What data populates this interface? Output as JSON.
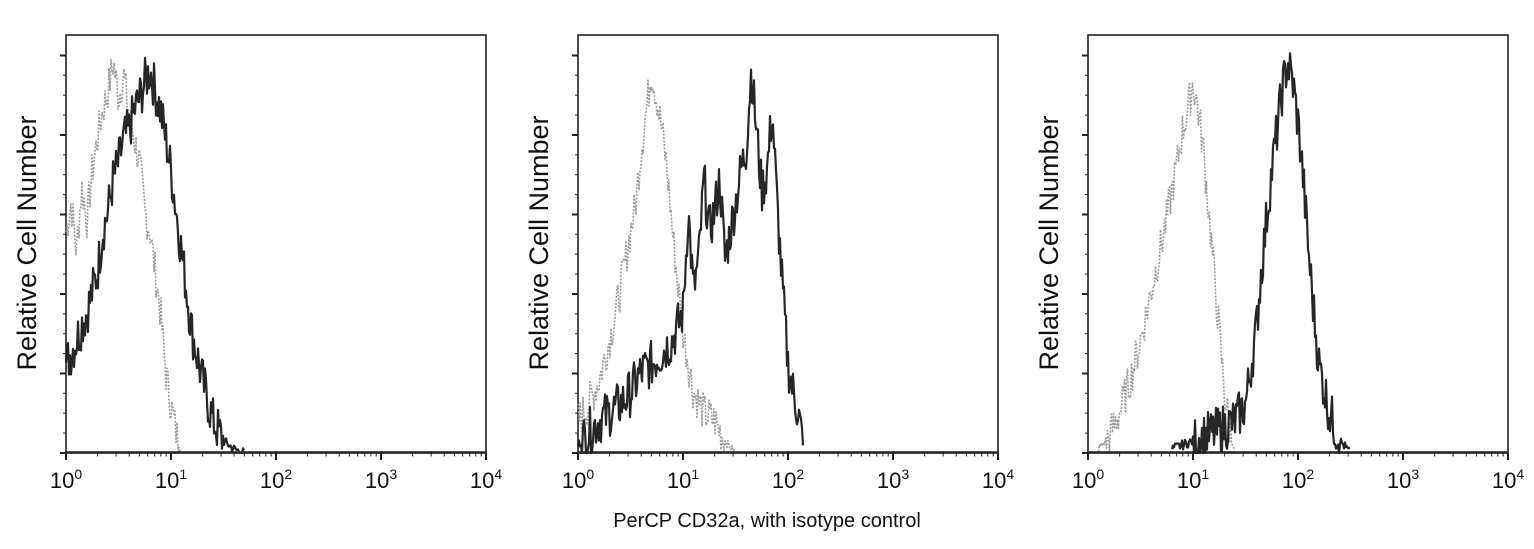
{
  "figure": {
    "shared_xlabel": "PerCP CD32a, with isotype control",
    "panels": [
      {
        "ylabel": "Relative Cell Number",
        "xticks": [
          {
            "base": "10",
            "exp": "0"
          },
          {
            "base": "10",
            "exp": "1"
          },
          {
            "base": "10",
            "exp": "2"
          },
          {
            "base": "10",
            "exp": "3"
          },
          {
            "base": "10",
            "exp": "4"
          }
        ]
      },
      {
        "ylabel": "Relative Cell Number",
        "xticks": [
          {
            "base": "10",
            "exp": "0"
          },
          {
            "base": "10",
            "exp": "1"
          },
          {
            "base": "10",
            "exp": "2"
          },
          {
            "base": "10",
            "exp": "3"
          },
          {
            "base": "10",
            "exp": "4"
          }
        ]
      },
      {
        "ylabel": "Relative Cell Number",
        "xticks": [
          {
            "base": "10",
            "exp": "0"
          },
          {
            "base": "10",
            "exp": "1"
          },
          {
            "base": "10",
            "exp": "2"
          },
          {
            "base": "10",
            "exp": "3"
          },
          {
            "base": "10",
            "exp": "4"
          }
        ]
      }
    ]
  },
  "colors": {
    "isotype": "#8a8a8a",
    "stained": "#1a1a1a",
    "axis": "#222222"
  },
  "chart_data": [
    {
      "type": "area",
      "title": "",
      "xlabel": "PerCP CD32a, with isotype control",
      "ylabel": "Relative Cell Number",
      "xscale": "log",
      "xlim": [
        1,
        10000
      ],
      "ylim": [
        0,
        100
      ],
      "xtick_labels": [
        "10^0",
        "10^1",
        "10^2",
        "10^3",
        "10^4"
      ],
      "grid": false,
      "legend": "none",
      "series": [
        {
          "name": "Isotype control",
          "color": "#8a8a8a",
          "log10_x": [
            0.0,
            0.05,
            0.1,
            0.15,
            0.2,
            0.25,
            0.3,
            0.35,
            0.4,
            0.45,
            0.5,
            0.55,
            0.6,
            0.65,
            0.7,
            0.75,
            0.8,
            0.85,
            0.9,
            0.95,
            1.0,
            1.05,
            1.1
          ],
          "values": [
            55,
            62,
            50,
            66,
            58,
            70,
            78,
            85,
            90,
            97,
            88,
            94,
            84,
            78,
            72,
            60,
            55,
            45,
            35,
            20,
            12,
            5,
            0
          ]
        },
        {
          "name": "PerCP CD32a",
          "color": "#1a1a1a",
          "log10_x": [
            0.0,
            0.05,
            0.1,
            0.15,
            0.2,
            0.25,
            0.3,
            0.35,
            0.4,
            0.45,
            0.5,
            0.55,
            0.6,
            0.65,
            0.7,
            0.75,
            0.8,
            0.85,
            0.9,
            0.95,
            1.0,
            1.05,
            1.1,
            1.15,
            1.2,
            1.3,
            1.4,
            1.5,
            1.6,
            1.7
          ],
          "values": [
            22,
            25,
            28,
            32,
            35,
            40,
            45,
            55,
            60,
            68,
            72,
            78,
            80,
            85,
            88,
            92,
            95,
            90,
            85,
            78,
            70,
            60,
            50,
            40,
            30,
            18,
            8,
            3,
            1,
            0
          ]
        }
      ]
    },
    {
      "type": "area",
      "title": "",
      "xlabel": "PerCP CD32a, with isotype control",
      "ylabel": "Relative Cell Number",
      "xscale": "log",
      "xlim": [
        1,
        10000
      ],
      "ylim": [
        0,
        100
      ],
      "xtick_labels": [
        "10^0",
        "10^1",
        "10^2",
        "10^3",
        "10^4"
      ],
      "grid": false,
      "legend": "none",
      "series": [
        {
          "name": "Isotype control",
          "color": "#8a8a8a",
          "log10_x": [
            0.0,
            0.1,
            0.2,
            0.3,
            0.4,
            0.5,
            0.55,
            0.6,
            0.65,
            0.7,
            0.75,
            0.8,
            0.85,
            0.9,
            0.95,
            1.0,
            1.1,
            1.2,
            1.3,
            1.4,
            1.5
          ],
          "values": [
            8,
            12,
            18,
            28,
            40,
            55,
            62,
            75,
            85,
            95,
            88,
            80,
            70,
            55,
            42,
            30,
            15,
            10,
            8,
            3,
            0
          ]
        },
        {
          "name": "PerCP CD32a",
          "color": "#1a1a1a",
          "log10_x": [
            0.0,
            0.2,
            0.3,
            0.4,
            0.5,
            0.6,
            0.7,
            0.8,
            0.9,
            1.0,
            1.05,
            1.1,
            1.15,
            1.2,
            1.25,
            1.3,
            1.35,
            1.4,
            1.45,
            1.5,
            1.55,
            1.6,
            1.65,
            1.7,
            1.75,
            1.8,
            1.85,
            1.9,
            1.95,
            2.0,
            2.05,
            2.1,
            2.15
          ],
          "values": [
            2,
            8,
            10,
            12,
            15,
            20,
            22,
            25,
            28,
            35,
            60,
            40,
            48,
            68,
            55,
            60,
            68,
            48,
            55,
            62,
            70,
            75,
            95,
            80,
            65,
            70,
            85,
            60,
            40,
            22,
            15,
            10,
            0
          ]
        }
      ]
    },
    {
      "type": "area",
      "title": "",
      "xlabel": "PerCP CD32a, with isotype control",
      "ylabel": "Relative Cell Number",
      "xscale": "log",
      "xlim": [
        1,
        10000
      ],
      "ylim": [
        0,
        100
      ],
      "xtick_labels": [
        "10^0",
        "10^1",
        "10^2",
        "10^3",
        "10^4"
      ],
      "grid": false,
      "legend": "none",
      "series": [
        {
          "name": "Isotype control",
          "color": "#8a8a8a",
          "log10_x": [
            0.1,
            0.2,
            0.3,
            0.4,
            0.5,
            0.6,
            0.7,
            0.8,
            0.85,
            0.9,
            0.95,
            1.0,
            1.05,
            1.1,
            1.15,
            1.2,
            1.25,
            1.3,
            1.35,
            1.4
          ],
          "values": [
            1,
            4,
            10,
            18,
            28,
            40,
            52,
            65,
            72,
            80,
            85,
            92,
            85,
            75,
            60,
            45,
            30,
            15,
            6,
            0
          ]
        },
        {
          "name": "PerCP CD32a",
          "color": "#1a1a1a",
          "log10_x": [
            0.8,
            1.0,
            1.2,
            1.4,
            1.5,
            1.6,
            1.65,
            1.7,
            1.75,
            1.8,
            1.85,
            1.9,
            1.95,
            2.0,
            2.05,
            2.1,
            2.15,
            2.2,
            2.3,
            2.4,
            2.5
          ],
          "values": [
            1,
            3,
            5,
            8,
            12,
            30,
            45,
            58,
            70,
            80,
            90,
            97,
            92,
            82,
            68,
            50,
            35,
            22,
            10,
            3,
            0
          ]
        }
      ]
    }
  ]
}
